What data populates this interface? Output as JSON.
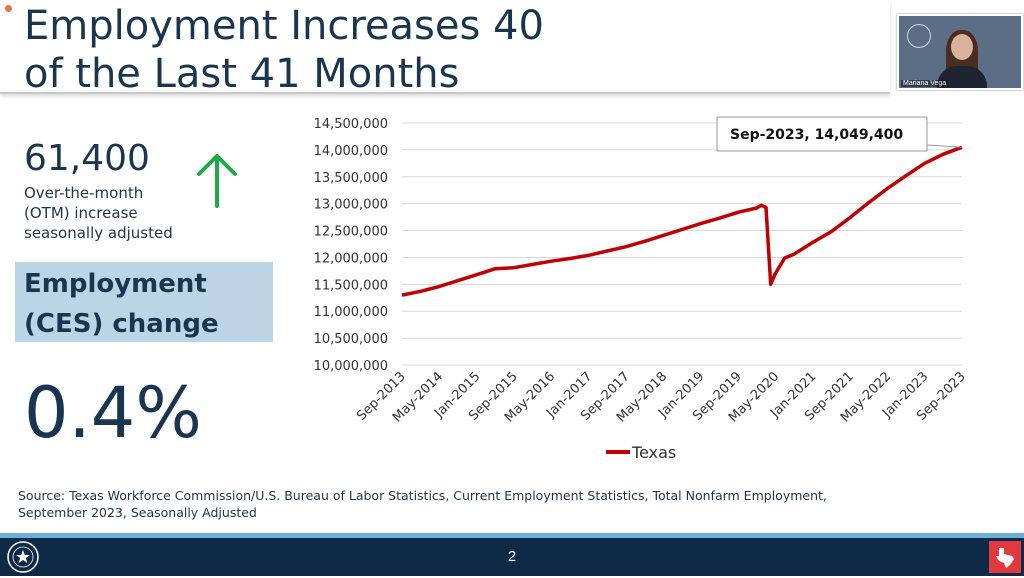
{
  "slide": {
    "title_line1": "Employment Increases 40",
    "title_line2": "of the Last 41 Months",
    "otm_value": "61,400",
    "otm_desc_line1": "Over-the-month",
    "otm_desc_line2": "(OTM) increase",
    "otm_desc_line3": "seasonally adjusted",
    "ces_line1": "Employment",
    "ces_line2": "(CES) change",
    "pct_change": "0.4%",
    "source_line1": "Source: Texas Workforce Commission/U.S. Bureau of Labor Statistics, Current Employment Statistics, Total Nonfarm Employment,",
    "source_line2": "September 2023, Seasonally Adjusted",
    "page_number": "2"
  },
  "video": {
    "participant_name": "Mariana Vega"
  },
  "colors": {
    "title": "#1a3550",
    "line": "#c00000",
    "arrow": "#22a84a",
    "box": "#bcd5e6",
    "footer": "#0e2a47"
  },
  "chart_data": {
    "type": "line",
    "series": [
      {
        "name": "Texas",
        "color": "#c00000",
        "points": [
          [
            "Sep-2013",
            11300000
          ],
          [
            "Jan-2014",
            11370000
          ],
          [
            "May-2014",
            11460000
          ],
          [
            "Sep-2014",
            11570000
          ],
          [
            "Jan-2015",
            11680000
          ],
          [
            "May-2015",
            11790000
          ],
          [
            "Sep-2015",
            11810000
          ],
          [
            "Jan-2016",
            11870000
          ],
          [
            "May-2016",
            11930000
          ],
          [
            "Sep-2016",
            11980000
          ],
          [
            "Jan-2017",
            12040000
          ],
          [
            "May-2017",
            12120000
          ],
          [
            "Sep-2017",
            12200000
          ],
          [
            "Jan-2018",
            12300000
          ],
          [
            "May-2018",
            12410000
          ],
          [
            "Sep-2018",
            12520000
          ],
          [
            "Jan-2019",
            12630000
          ],
          [
            "May-2019",
            12730000
          ],
          [
            "Sep-2019",
            12840000
          ],
          [
            "Jan-2020",
            12920000
          ],
          [
            "Feb-2020",
            12970000
          ],
          [
            "Mar-2020",
            12930000
          ],
          [
            "Apr-2020",
            11500000
          ],
          [
            "May-2020",
            11700000
          ],
          [
            "Jul-2020",
            11990000
          ],
          [
            "Sep-2020",
            12060000
          ],
          [
            "Jan-2021",
            12280000
          ],
          [
            "May-2021",
            12480000
          ],
          [
            "Sep-2021",
            12740000
          ],
          [
            "Jan-2022",
            13020000
          ],
          [
            "May-2022",
            13280000
          ],
          [
            "Sep-2022",
            13520000
          ],
          [
            "Jan-2023",
            13750000
          ],
          [
            "May-2023",
            13920000
          ],
          [
            "Sep-2023",
            14049400
          ]
        ]
      }
    ],
    "x_ticks": [
      "Sep-2013",
      "May-2014",
      "Jan-2015",
      "Sep-2015",
      "May-2016",
      "Jan-2017",
      "Sep-2017",
      "May-2018",
      "Jan-2019",
      "Sep-2019",
      "May-2020",
      "Jan-2021",
      "Sep-2021",
      "May-2022",
      "Jan-2023",
      "Sep-2023"
    ],
    "y_ticks": [
      "10,000,000",
      "10,500,000",
      "11,000,000",
      "11,500,000",
      "12,000,000",
      "12,500,000",
      "13,000,000",
      "13,500,000",
      "14,000,000",
      "14,500,000"
    ],
    "ylim": [
      10000000,
      14500000
    ],
    "xlim": [
      "Sep-2013",
      "Sep-2023"
    ],
    "grid": "horizontal",
    "legend": "bottom-center",
    "annotation": {
      "text": "Sep-2023,  14,049,400",
      "point": [
        "Sep-2023",
        14049400
      ]
    }
  }
}
